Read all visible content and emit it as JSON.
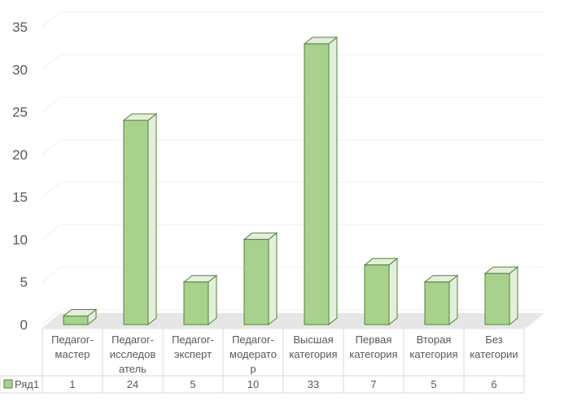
{
  "chart_data": {
    "type": "bar",
    "style": "3d-column",
    "categories": [
      [
        "Педагог-",
        "мастер"
      ],
      [
        "Педагог-",
        "исследов",
        "атель"
      ],
      [
        "Педагог-",
        "эксперт"
      ],
      [
        "Педагог-",
        "модерато",
        "р"
      ],
      [
        "Высшая",
        "категория"
      ],
      [
        "Первая",
        "категория"
      ],
      [
        "Вторая",
        "категория"
      ],
      [
        "Без",
        "категории"
      ]
    ],
    "series": [
      {
        "name": "Ряд1",
        "values": [
          1,
          24,
          5,
          10,
          33,
          7,
          5,
          6
        ]
      }
    ],
    "y_ticks": [
      "0",
      "5",
      "10",
      "15",
      "20",
      "25",
      "30",
      "35"
    ],
    "ylim": [
      0,
      35
    ],
    "grid": true,
    "legend": "data-table",
    "colors": {
      "bar_front": "#a9d18e",
      "bar_side": "#e2efda",
      "bar_top": "#e2efda",
      "bar_stroke": "#548235",
      "grid": "#efefef",
      "floor": "#e6e6e6",
      "axis_text": "#595959",
      "table_border": "#d9d9d9"
    }
  }
}
